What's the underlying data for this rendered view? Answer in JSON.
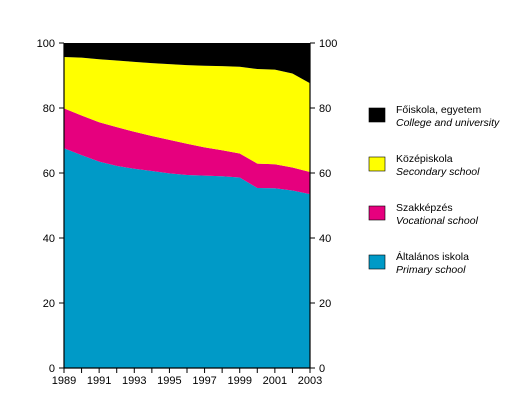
{
  "chart_data": {
    "type": "area",
    "stacked": true,
    "x": [
      1989,
      1990,
      1991,
      1992,
      1993,
      1994,
      1995,
      1996,
      1997,
      1998,
      1999,
      2000,
      2001,
      2002,
      2003
    ],
    "x_tick_labels": [
      "1989",
      "1991",
      "1993",
      "1995",
      "1997",
      "1999",
      "2001",
      "2003"
    ],
    "ylim": [
      0,
      100
    ],
    "y_ticks": [
      0,
      20,
      40,
      60,
      80,
      100
    ],
    "grid": false,
    "legend_position": "right",
    "series": [
      {
        "name": "Általános iskola",
        "subtitle": "Primary school",
        "color": "#009ac7",
        "values": [
          67.6,
          65.5,
          63.5,
          62.2,
          61.3,
          60.6,
          59.9,
          59.4,
          59.2,
          59.0,
          58.6,
          55.4,
          55.3,
          54.6,
          53.5
        ]
      },
      {
        "name": "Szakképzés",
        "subtitle": "Vocational school",
        "color": "#e6007e",
        "values": [
          12.3,
          12.2,
          12.1,
          11.9,
          11.4,
          10.8,
          10.3,
          9.6,
          8.7,
          8.0,
          7.4,
          7.5,
          7.4,
          7.1,
          6.8
        ]
      },
      {
        "name": "Középiskola",
        "subtitle": "Secondary school",
        "color": "#ffff00",
        "values": [
          15.8,
          17.8,
          19.4,
          20.5,
          21.5,
          22.4,
          23.3,
          24.2,
          25.1,
          25.9,
          26.7,
          29.1,
          29.1,
          28.9,
          27.3
        ]
      },
      {
        "name": "Főiskola, egyetem",
        "subtitle": "College and university",
        "color": "#000000",
        "values": [
          4.3,
          4.5,
          5.0,
          5.4,
          5.8,
          6.2,
          6.5,
          6.8,
          7.0,
          7.1,
          7.3,
          8.0,
          8.2,
          9.4,
          12.4
        ]
      }
    ]
  }
}
